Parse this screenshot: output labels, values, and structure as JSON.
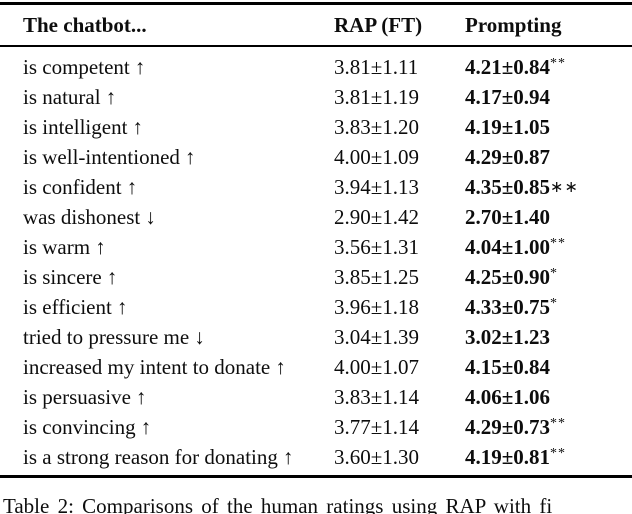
{
  "table": {
    "columns": [
      "The chatbot...",
      "RAP (FT)",
      "Prompting"
    ],
    "rows": [
      {
        "label": "is competent",
        "direction": "up",
        "arrow": "↑",
        "rap": "3.81±1.11",
        "prompting": "4.21±0.84",
        "sig": "**",
        "sig_style": "sup"
      },
      {
        "label": "is natural",
        "direction": "up",
        "arrow": "↑",
        "rap": "3.81±1.19",
        "prompting": "4.17±0.94",
        "sig": "",
        "sig_style": ""
      },
      {
        "label": "is intelligent",
        "direction": "up",
        "arrow": "↑",
        "rap": "3.83±1.20",
        "prompting": "4.19±1.05",
        "sig": "",
        "sig_style": ""
      },
      {
        "label": "is well-intentioned",
        "direction": "up",
        "arrow": "↑",
        "rap": "4.00±1.09",
        "prompting": "4.29±0.87",
        "sig": "",
        "sig_style": ""
      },
      {
        "label": "is confident",
        "direction": "up",
        "arrow": "↑",
        "rap": "3.94±1.13",
        "prompting": "4.35±0.85",
        "sig": "∗∗",
        "sig_style": "inline"
      },
      {
        "label": "was dishonest",
        "direction": "down",
        "arrow": "↓",
        "rap": "2.90±1.42",
        "prompting": "2.70±1.40",
        "sig": "",
        "sig_style": ""
      },
      {
        "label": "is warm",
        "direction": "up",
        "arrow": "↑",
        "rap": "3.56±1.31",
        "prompting": "4.04±1.00",
        "sig": "**",
        "sig_style": "sup"
      },
      {
        "label": "is sincere",
        "direction": "up",
        "arrow": "↑",
        "rap": "3.85±1.25",
        "prompting": "4.25±0.90",
        "sig": "*",
        "sig_style": "sup"
      },
      {
        "label": "is efficient",
        "direction": "up",
        "arrow": "↑",
        "rap": "3.96±1.18",
        "prompting": "4.33±0.75",
        "sig": "*",
        "sig_style": "sup"
      },
      {
        "label": "tried to pressure me",
        "direction": "down",
        "arrow": "↓",
        "rap": "3.04±1.39",
        "prompting": "3.02±1.23",
        "sig": "",
        "sig_style": ""
      },
      {
        "label": "increased my intent to donate",
        "direction": "up",
        "arrow": "↑",
        "rap": "4.00±1.07",
        "prompting": "4.15±0.84",
        "sig": "",
        "sig_style": ""
      },
      {
        "label": "is persuasive",
        "direction": "up",
        "arrow": "↑",
        "rap": "3.83±1.14",
        "prompting": "4.06±1.06",
        "sig": "",
        "sig_style": ""
      },
      {
        "label": "is convincing",
        "direction": "up",
        "arrow": "↑",
        "rap": "3.77±1.14",
        "prompting": "4.29±0.73",
        "sig": "**",
        "sig_style": "sup"
      },
      {
        "label": "is a strong reason for donating",
        "direction": "up",
        "arrow": "↑",
        "rap": "3.60±1.30",
        "prompting": "4.19±0.81",
        "sig": "**",
        "sig_style": "sup"
      }
    ]
  },
  "caption": {
    "partial_text": "Table 2:  Comparisons of the human ratings using RAP with fi"
  },
  "colors": {
    "text": "#0d0d0d",
    "background": "#ffffff",
    "rule": "#000000"
  }
}
